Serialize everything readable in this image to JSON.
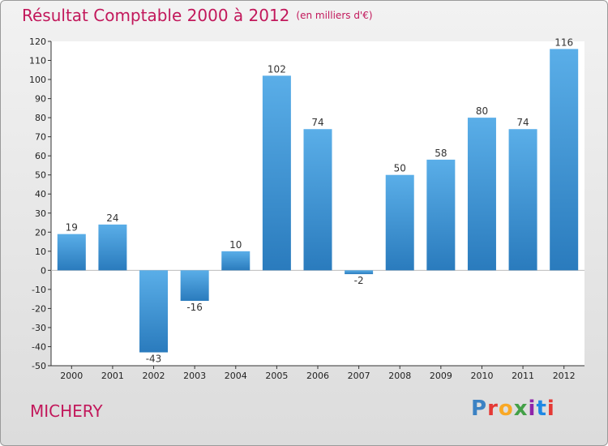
{
  "header": {
    "title": "Résultat Comptable 2000 à 2012",
    "unit": "(en milliers d'€)"
  },
  "footer": {
    "commune": "MICHERY",
    "logo_letters": [
      "P",
      "r",
      "o",
      "x",
      "i",
      "t",
      "i"
    ],
    "logo_colors": [
      "#3b82c4",
      "#e53935",
      "#f9a825",
      "#43a047",
      "#8e24aa",
      "#1e88e5",
      "#e53935"
    ]
  },
  "chart_data": {
    "type": "bar",
    "title": "Résultat Comptable 2000 à 2012",
    "subtitle": "(en milliers d'€)",
    "xlabel": "",
    "ylabel": "",
    "categories": [
      "2000",
      "2001",
      "2002",
      "2003",
      "2004",
      "2005",
      "2006",
      "2007",
      "2008",
      "2009",
      "2010",
      "2011",
      "2012"
    ],
    "values": [
      19,
      24,
      -43,
      -16,
      10,
      102,
      74,
      -2,
      50,
      58,
      80,
      74,
      116
    ],
    "ylim": [
      -50,
      120
    ],
    "yticks": [
      -50,
      -40,
      -30,
      -20,
      -10,
      0,
      10,
      20,
      30,
      40,
      50,
      60,
      70,
      80,
      90,
      100,
      110,
      120
    ],
    "grid": false,
    "bar_color_top": "#5aaee8",
    "bar_color_bottom": "#2a7bbd"
  }
}
